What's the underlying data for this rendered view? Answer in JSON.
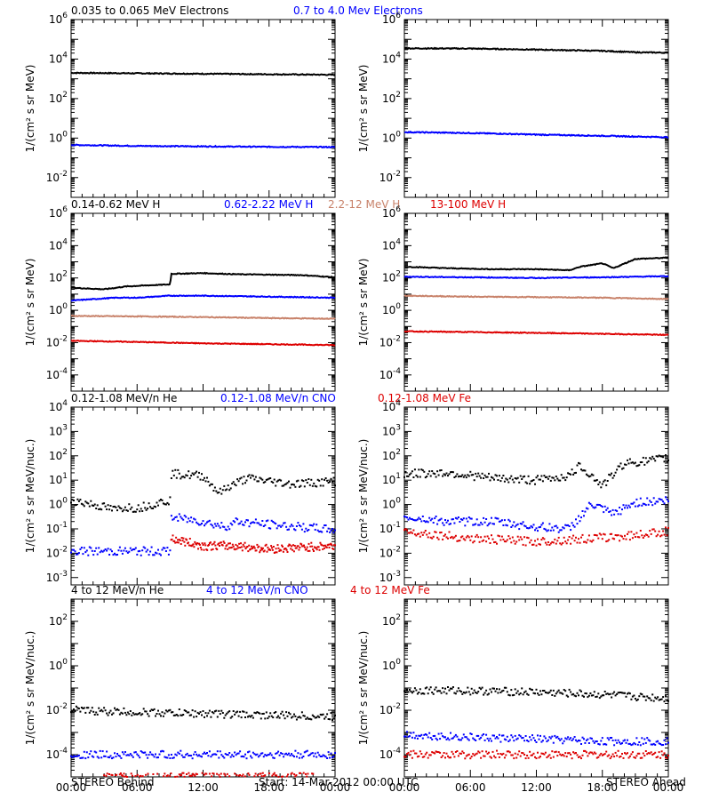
{
  "rows": [
    {
      "ylabel": "1/(cm² s sr MeV)",
      "ytick_exponents": [
        -2,
        0,
        2,
        4,
        6
      ],
      "titles": [
        {
          "text": "0.035 to 0.065 MeV Electrons",
          "color": "#000000"
        },
        {
          "text": "0.7 to 4.0 Mev Electrons",
          "color": "#0000ff"
        }
      ]
    },
    {
      "ylabel": "1/(cm² s sr MeV)",
      "ytick_exponents": [
        -4,
        -2,
        0,
        2,
        4,
        6
      ],
      "titles": [
        {
          "text": "0.14-0.62 MeV H",
          "color": "#000000"
        },
        {
          "text": "0.62-2.22 MeV H",
          "color": "#0000ff"
        },
        {
          "text": "2.2-12 MeV H",
          "color": "#c8826a"
        },
        {
          "text": "13-100 MeV H",
          "color": "#dd0000"
        }
      ]
    },
    {
      "ylabel": "1/(cm² s sr MeV/nuc.)",
      "ytick_exponents": [
        -3,
        -2,
        -1,
        0,
        1,
        2,
        3,
        4
      ],
      "titles": [
        {
          "text": "0.12-1.08 MeV/n He",
          "color": "#000000"
        },
        {
          "text": "0.12-1.08 MeV/n CNO",
          "color": "#0000ff"
        },
        {
          "text": "0.12-1.08 MeV Fe",
          "color": "#dd0000"
        }
      ]
    },
    {
      "ylabel": "1/(cm² s sr MeV/nuc.)",
      "ytick_exponents": [
        -4,
        -2,
        0,
        2
      ],
      "titles": [
        {
          "text": "4 to 12 MeV/n He",
          "color": "#000000"
        },
        {
          "text": "4 to 12 MeV/n CNO",
          "color": "#0000ff"
        },
        {
          "text": "4 to 12 MeV Fe",
          "color": "#dd0000"
        }
      ]
    }
  ],
  "xticks": [
    "00:00",
    "06:00",
    "12:00",
    "18:00",
    "00:00"
  ],
  "footer": {
    "left": "STEREO Behind",
    "center": "Start: 14-Mar-2012 00:00 UTC",
    "right": "STEREO Ahead"
  },
  "chart_data": [
    {
      "type": "line",
      "panel": "STEREO Behind electrons",
      "yscale": "log",
      "ylim": [
        0.001,
        1000000
      ],
      "x_hours": [
        0,
        24
      ],
      "series": [
        {
          "name": "0.035 to 0.065 MeV Electrons",
          "color": "#000000",
          "style": "line",
          "points": [
            [
              0,
              2000
            ],
            [
              6,
              1900
            ],
            [
              12,
              1800
            ],
            [
              18,
              1700
            ],
            [
              24,
              1600
            ]
          ]
        },
        {
          "name": "0.7 to 4.0 Mev Electrons",
          "color": "#0000ff",
          "style": "line",
          "points": [
            [
              0,
              0.45
            ],
            [
              6,
              0.4
            ],
            [
              12,
              0.38
            ],
            [
              18,
              0.36
            ],
            [
              24,
              0.35
            ]
          ]
        }
      ]
    },
    {
      "type": "line",
      "panel": "STEREO Ahead electrons",
      "yscale": "log",
      "ylim": [
        0.001,
        1000000
      ],
      "x_hours": [
        0,
        24
      ],
      "series": [
        {
          "name": "0.035 to 0.065 MeV Electrons",
          "color": "#000000",
          "style": "line",
          "points": [
            [
              0,
              35000
            ],
            [
              6,
              34000
            ],
            [
              12,
              30000
            ],
            [
              18,
              26000
            ],
            [
              21,
              22000
            ],
            [
              24,
              21000
            ]
          ]
        },
        {
          "name": "0.7 to 4.0 Mev Electrons",
          "color": "#0000ff",
          "style": "line",
          "points": [
            [
              0,
              2.0
            ],
            [
              6,
              1.8
            ],
            [
              12,
              1.5
            ],
            [
              18,
              1.3
            ],
            [
              24,
              1.1
            ]
          ]
        }
      ]
    },
    {
      "type": "line",
      "panel": "STEREO Behind protons",
      "yscale": "log",
      "ylim": [
        1e-05,
        1000000
      ],
      "x_hours": [
        0,
        24
      ],
      "series": [
        {
          "name": "0.14-0.62 MeV H",
          "color": "#000000",
          "style": "line",
          "points": [
            [
              0,
              25
            ],
            [
              3,
              20
            ],
            [
              5,
              30
            ],
            [
              7,
              35
            ],
            [
              9,
              40
            ],
            [
              9.1,
              180
            ],
            [
              12,
              200
            ],
            [
              15,
              170
            ],
            [
              18,
              160
            ],
            [
              21,
              150
            ],
            [
              24,
              110
            ]
          ]
        },
        {
          "name": "0.62-2.22 MeV H",
          "color": "#0000ff",
          "style": "line",
          "points": [
            [
              0,
              4
            ],
            [
              4,
              6
            ],
            [
              6,
              6
            ],
            [
              9,
              8
            ],
            [
              12,
              8
            ],
            [
              18,
              7
            ],
            [
              24,
              6
            ]
          ]
        },
        {
          "name": "2.2-12 MeV H",
          "color": "#c8826a",
          "style": "line",
          "points": [
            [
              0,
              0.45
            ],
            [
              6,
              0.42
            ],
            [
              12,
              0.38
            ],
            [
              18,
              0.33
            ],
            [
              24,
              0.3
            ]
          ]
        },
        {
          "name": "13-100 MeV H",
          "color": "#dd0000",
          "style": "line",
          "points": [
            [
              0,
              0.013
            ],
            [
              6,
              0.011
            ],
            [
              12,
              0.009
            ],
            [
              18,
              0.008
            ],
            [
              24,
              0.007
            ]
          ]
        }
      ]
    },
    {
      "type": "line",
      "panel": "STEREO Ahead protons",
      "yscale": "log",
      "ylim": [
        1e-05,
        1000000
      ],
      "x_hours": [
        0,
        24
      ],
      "series": [
        {
          "name": "0.14-0.62 MeV H",
          "color": "#000000",
          "style": "line",
          "points": [
            [
              0,
              500
            ],
            [
              4,
              400
            ],
            [
              8,
              350
            ],
            [
              12,
              350
            ],
            [
              15,
              300
            ],
            [
              16,
              500
            ],
            [
              18,
              800
            ],
            [
              19,
              400
            ],
            [
              21,
              1500
            ],
            [
              24,
              1800
            ]
          ]
        },
        {
          "name": "0.62-2.22 MeV H",
          "color": "#0000ff",
          "style": "line",
          "points": [
            [
              0,
              120
            ],
            [
              6,
              110
            ],
            [
              12,
              100
            ],
            [
              18,
              110
            ],
            [
              24,
              130
            ]
          ]
        },
        {
          "name": "2.2-12 MeV H",
          "color": "#c8826a",
          "style": "line",
          "points": [
            [
              0,
              8
            ],
            [
              6,
              7
            ],
            [
              12,
              6.5
            ],
            [
              18,
              6
            ],
            [
              24,
              5
            ]
          ]
        },
        {
          "name": "13-100 MeV H",
          "color": "#dd0000",
          "style": "line",
          "points": [
            [
              0,
              0.05
            ],
            [
              6,
              0.045
            ],
            [
              12,
              0.04
            ],
            [
              18,
              0.035
            ],
            [
              24,
              0.03
            ]
          ]
        }
      ]
    },
    {
      "type": "scatter",
      "panel": "STEREO Behind low-energy heavy ions",
      "yscale": "log",
      "ylim": [
        0.0005,
        10000
      ],
      "x_hours": [
        0,
        24
      ],
      "series": [
        {
          "name": "0.12-1.08 MeV/n He",
          "color": "#000000",
          "style": "dots",
          "points": [
            [
              0,
              1.5
            ],
            [
              2,
              1.0
            ],
            [
              4,
              0.6
            ],
            [
              5,
              0.8
            ],
            [
              6,
              0.7
            ],
            [
              8,
              1.2
            ],
            [
              9,
              1.5
            ],
            [
              9.1,
              18
            ],
            [
              12,
              15
            ],
            [
              13.5,
              3
            ],
            [
              14.5,
              6
            ],
            [
              16,
              12
            ],
            [
              20,
              7
            ],
            [
              24,
              9
            ]
          ]
        },
        {
          "name": "0.12-1.08 MeV/n CNO",
          "color": "#0000ff",
          "style": "dots",
          "points": [
            [
              0,
              0.012
            ],
            [
              4,
              0.012
            ],
            [
              9,
              0.012
            ],
            [
              9.1,
              0.3
            ],
            [
              12,
              0.2
            ],
            [
              14,
              0.12
            ],
            [
              15,
              0.2
            ],
            [
              18,
              0.15
            ],
            [
              24,
              0.09
            ]
          ]
        },
        {
          "name": "0.12-1.08 MeV Fe",
          "color": "#dd0000",
          "style": "dots",
          "points": [
            [
              9.1,
              0.04
            ],
            [
              12,
              0.02
            ],
            [
              15,
              0.02
            ],
            [
              18,
              0.015
            ],
            [
              24,
              0.02
            ]
          ]
        }
      ]
    },
    {
      "type": "scatter",
      "panel": "STEREO Ahead low-energy heavy ions",
      "yscale": "log",
      "ylim": [
        0.0005,
        10000
      ],
      "x_hours": [
        0,
        24
      ],
      "series": [
        {
          "name": "0.12-1.08 MeV/n He",
          "color": "#000000",
          "style": "dots",
          "points": [
            [
              0,
              18
            ],
            [
              4,
              20
            ],
            [
              8,
              12
            ],
            [
              12,
              10
            ],
            [
              15,
              15
            ],
            [
              16,
              40
            ],
            [
              18,
              6
            ],
            [
              20,
              50
            ],
            [
              22,
              60
            ],
            [
              24,
              80
            ]
          ]
        },
        {
          "name": "0.12-1.08 MeV/n CNO",
          "color": "#0000ff",
          "style": "dots",
          "points": [
            [
              0,
              0.3
            ],
            [
              4,
              0.2
            ],
            [
              8,
              0.2
            ],
            [
              12,
              0.12
            ],
            [
              15,
              0.1
            ],
            [
              17,
              1.0
            ],
            [
              19,
              0.4
            ],
            [
              21,
              1.2
            ],
            [
              24,
              1.5
            ]
          ]
        },
        {
          "name": "0.12-1.08 MeV Fe",
          "color": "#dd0000",
          "style": "dots",
          "points": [
            [
              0,
              0.08
            ],
            [
              6,
              0.04
            ],
            [
              12,
              0.03
            ],
            [
              17,
              0.04
            ],
            [
              20,
              0.05
            ],
            [
              24,
              0.08
            ]
          ]
        }
      ]
    },
    {
      "type": "scatter",
      "panel": "STEREO Behind high-energy heavy ions",
      "yscale": "log",
      "ylim": [
        1e-05,
        1000
      ],
      "x_hours": [
        0,
        24
      ],
      "series": [
        {
          "name": "4 to 12 MeV/n He",
          "color": "#000000",
          "style": "dots",
          "points": [
            [
              0,
              0.01
            ],
            [
              6,
              0.008
            ],
            [
              12,
              0.007
            ],
            [
              18,
              0.006
            ],
            [
              24,
              0.005
            ]
          ]
        },
        {
          "name": "4 to 12 MeV/n CNO",
          "color": "#0000ff",
          "style": "dots",
          "points": [
            [
              0,
              0.0001
            ],
            [
              6,
              0.0001
            ],
            [
              12,
              0.0001
            ],
            [
              18,
              0.0001
            ],
            [
              24,
              0.0001
            ]
          ]
        },
        {
          "name": "4 to 12 MeV Fe",
          "color": "#dd0000",
          "style": "dots",
          "points": [
            [
              3,
              1e-05
            ],
            [
              10,
              1e-05
            ],
            [
              16,
              1e-05
            ],
            [
              22,
              1e-05
            ]
          ]
        }
      ]
    },
    {
      "type": "scatter",
      "panel": "STEREO Ahead high-energy heavy ions",
      "yscale": "log",
      "ylim": [
        1e-05,
        1000
      ],
      "x_hours": [
        0,
        24
      ],
      "series": [
        {
          "name": "4 to 12 MeV/n He",
          "color": "#000000",
          "style": "dots",
          "points": [
            [
              0,
              0.08
            ],
            [
              6,
              0.075
            ],
            [
              12,
              0.065
            ],
            [
              18,
              0.05
            ],
            [
              21,
              0.04
            ],
            [
              24,
              0.035
            ]
          ]
        },
        {
          "name": "4 to 12 MeV/n CNO",
          "color": "#0000ff",
          "style": "dots",
          "points": [
            [
              0,
              0.0008
            ],
            [
              6,
              0.0006
            ],
            [
              12,
              0.0005
            ],
            [
              18,
              0.0004
            ],
            [
              24,
              0.0004
            ]
          ]
        },
        {
          "name": "4 to 12 MeV Fe",
          "color": "#dd0000",
          "style": "dots",
          "points": [
            [
              0,
              0.0001
            ],
            [
              6,
              0.0001
            ],
            [
              12,
              0.0001
            ],
            [
              18,
              0.0001
            ],
            [
              24,
              0.0001
            ]
          ]
        }
      ]
    }
  ]
}
